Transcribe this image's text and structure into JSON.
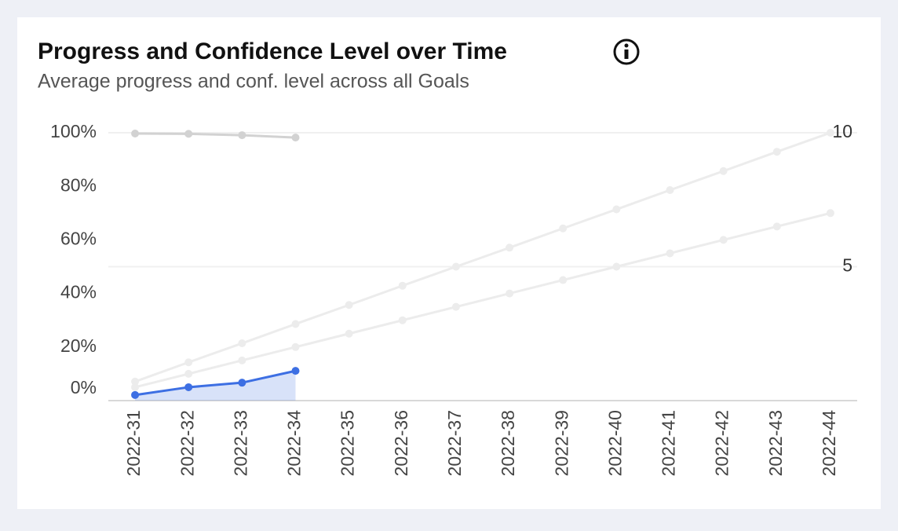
{
  "chart_data": {
    "type": "line",
    "title": "Progress and Confidence Level over Time",
    "subtitle": "Average progress and conf. level across all Goals",
    "categories": [
      "2022-31",
      "2022-32",
      "2022-33",
      "2022-34",
      "2022-35",
      "2022-36",
      "2022-37",
      "2022-38",
      "2022-39",
      "2022-40",
      "2022-41",
      "2022-42",
      "2022-43",
      "2022-44"
    ],
    "series": [
      {
        "color": "#ececec",
        "values": [
          7.1,
          14.3,
          21.4,
          28.6,
          35.7,
          42.9,
          50,
          57.1,
          64.3,
          71.4,
          78.6,
          85.7,
          92.9,
          100
        ]
      },
      {
        "color": "#ececec",
        "values": [
          5,
          10,
          15,
          20,
          25,
          30,
          35,
          40,
          45,
          50,
          55,
          60,
          65,
          70
        ]
      },
      {
        "color": "#d2d2d2",
        "axis": "y2",
        "values": [
          9.97,
          9.96,
          9.91,
          9.82,
          null,
          null,
          null,
          null,
          null,
          null,
          null,
          null,
          null,
          null
        ]
      },
      {
        "color": "#3d6fe3",
        "area": true,
        "values": [
          2.1,
          5.0,
          6.7,
          11.1,
          null,
          null,
          null,
          null,
          null,
          null,
          null,
          null,
          null,
          null
        ]
      }
    ],
    "ylim": [
      0,
      100
    ],
    "yticks": [
      {
        "value": 0,
        "label": "0%"
      },
      {
        "value": 20,
        "label": "20%"
      },
      {
        "value": 40,
        "label": "40%"
      },
      {
        "value": 60,
        "label": "60%"
      },
      {
        "value": 80,
        "label": "80%"
      },
      {
        "value": 100,
        "label": "100%"
      }
    ],
    "y2lim": [
      0,
      10
    ],
    "y2ticks": [
      5,
      10
    ],
    "grid": "y2"
  }
}
